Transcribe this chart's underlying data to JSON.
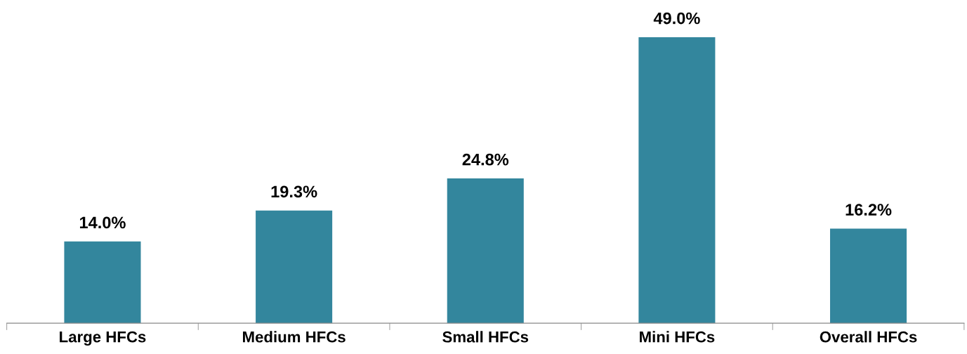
{
  "chart_data": {
    "type": "bar",
    "categories": [
      "Large HFCs",
      "Medium HFCs",
      "Small HFCs",
      "Mini HFCs",
      "Overall HFCs"
    ],
    "values": [
      14.0,
      19.3,
      24.8,
      49.0,
      16.2
    ],
    "value_labels": [
      "14.0%",
      "19.3%",
      "24.8%",
      "49.0%",
      "16.2%"
    ],
    "color": "#33869d",
    "grid": false,
    "legend": false,
    "tick_labels": "x"
  }
}
